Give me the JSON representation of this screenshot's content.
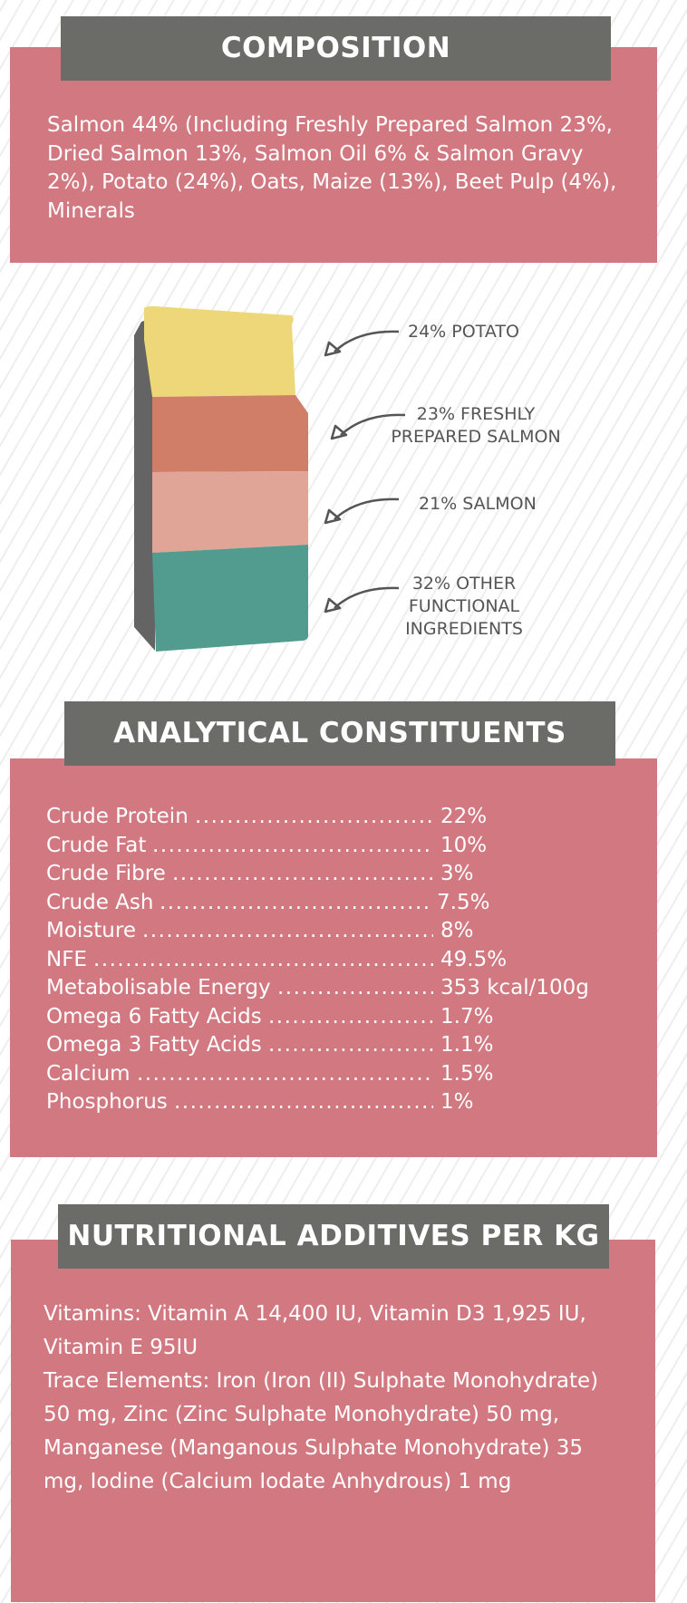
{
  "composition": {
    "title": "COMPOSITION",
    "text": "Salmon 44% (Including Freshly Prepared Salmon 23%, Dried Salmon 13%, Salmon Oil 6% & Salmon Gravy 2%), Potato (24%), Oats, Maize (13%), Beet Pulp (4%), Minerals"
  },
  "bag": {
    "layers": [
      {
        "label": "24% POTATO",
        "color": "#eed778"
      },
      {
        "label": "23% FRESHLY PREPARED SALMON",
        "color": "#d07e68"
      },
      {
        "label": "21% SALMON",
        "color": "#e0a597"
      },
      {
        "label": "32% OTHER FUNCTIONAL INGREDIENTS",
        "color": "#519b8f"
      }
    ],
    "side_color": "#646464"
  },
  "analytical": {
    "title": "ANALYTICAL CONSTITUENTS",
    "rows": [
      {
        "label": "Crude Protein",
        "value": "22%"
      },
      {
        "label": "Crude Fat",
        "value": "10%"
      },
      {
        "label": "Crude Fibre",
        "value": "3%"
      },
      {
        "label": "Crude Ash",
        "value": "7.5%"
      },
      {
        "label": "Moisture",
        "value": "8%"
      },
      {
        "label": "NFE",
        "value": "49.5%"
      },
      {
        "label": "Metabolisable Energy",
        "value": "353 kcal/100g"
      },
      {
        "label": "Omega 6 Fatty Acids",
        "value": "1.7%"
      },
      {
        "label": "Omega 3 Fatty Acids",
        "value": "1.1%"
      },
      {
        "label": "Calcium",
        "value": "1.5%"
      },
      {
        "label": "Phosphorus",
        "value": "1%"
      }
    ]
  },
  "additives": {
    "title": "NUTRITIONAL ADDITIVES PER KG",
    "vitamins": "Vitamins: Vitamin A 14,400 IU, Vitamin D3 1,925 IU, Vitamin E 95IU",
    "trace": "Trace Elements: Iron (Iron (II) Sulphate Monohydrate) 50 mg, Zinc (Zinc Sulphate Monohydrate) 50 mg, Manganese (Manganous Sulphate Monohydrate) 35 mg, Iodine (Calcium Iodate Anhydrous) 1 mg"
  },
  "colors": {
    "panel": "#d27880",
    "header": "#6b6b67",
    "text": "#ffffff",
    "label_text": "#555555"
  }
}
